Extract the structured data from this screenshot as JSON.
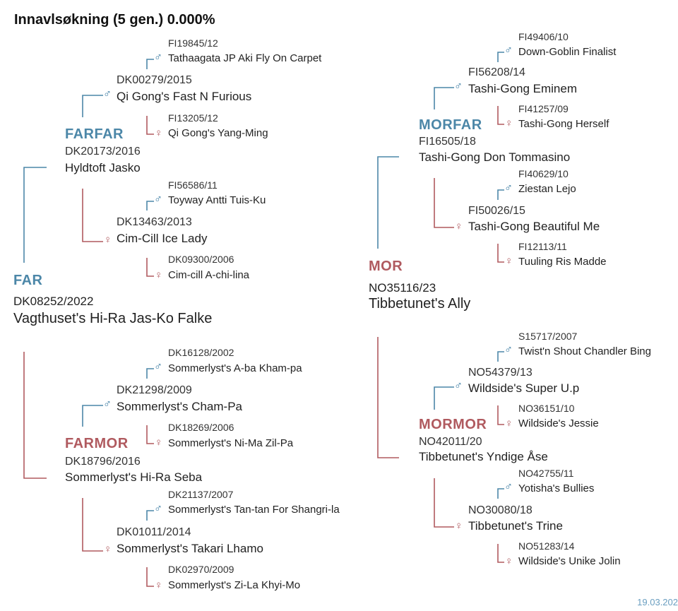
{
  "title": "Innavlsøkning (5 gen.) 0.000%",
  "date": "19.03.202",
  "male_symbol": "♂",
  "female_symbol": "♀",
  "colors": {
    "male": "#4c87a8",
    "female": "#b05a5f",
    "text": "#222222"
  },
  "far": {
    "label": "FAR",
    "reg": "DK08252/2022",
    "name": "Vagthuset's Hi-Ra Jas-Ko Falke"
  },
  "mor": {
    "label": "MOR",
    "reg": "NO35116/23",
    "name": "Tibbetunet's Ally"
  },
  "farfar": {
    "label": "FARFAR",
    "reg": "DK20173/2016",
    "name": "Hyldtoft Jasko"
  },
  "farmor": {
    "label": "FARMOR",
    "reg": "DK18796/2016",
    "name": "Sommerlyst's Hi-Ra Seba"
  },
  "morfar": {
    "label": "MORFAR",
    "reg": "FI16505/18",
    "name": "Tashi-Gong Don Tommasino"
  },
  "mormor": {
    "label": "MORMOR",
    "reg": "NO42011/20",
    "name": "Tibbetunet's Yndige Åse"
  },
  "g3": {
    "ff_s": {
      "reg": "DK00279/2015",
      "name": "Qi Gong's Fast N Furious"
    },
    "ff_d": {
      "reg": "DK13463/2013",
      "name": "Cim-Cill Ice Lady"
    },
    "fm_s": {
      "reg": "DK21298/2009",
      "name": "Sommerlyst's Cham-Pa"
    },
    "fm_d": {
      "reg": "DK01011/2014",
      "name": "Sommerlyst's Takari Lhamo"
    },
    "mf_s": {
      "reg": "FI56208/14",
      "name": "Tashi-Gong Eminem"
    },
    "mf_d": {
      "reg": "FI50026/15",
      "name": "Tashi-Gong Beautiful Me"
    },
    "mm_s": {
      "reg": "NO54379/13",
      "name": "Wildside's Super U.p"
    },
    "mm_d": {
      "reg": "NO30080/18",
      "name": "Tibbetunet's Trine"
    }
  },
  "g4": {
    "ffs_s": {
      "reg": "FI19845/12",
      "name": "Tathaagata JP Aki Fly On Carpet"
    },
    "ffs_d": {
      "reg": "FI13205/12",
      "name": "Qi Gong's Yang-Ming"
    },
    "ffd_s": {
      "reg": "FI56586/11",
      "name": "Toyway Antti Tuis-Ku"
    },
    "ffd_d": {
      "reg": "DK09300/2006",
      "name": "Cim-cill A-chi-lina"
    },
    "fms_s": {
      "reg": "DK16128/2002",
      "name": "Sommerlyst's A-ba Kham-pa"
    },
    "fms_d": {
      "reg": "DK18269/2006",
      "name": "Sommerlyst's Ni-Ma Zil-Pa"
    },
    "fmd_s": {
      "reg": "DK21137/2007",
      "name": "Sommerlyst's Tan-tan For Shangri-la"
    },
    "fmd_d": {
      "reg": "DK02970/2009",
      "name": "Sommerlyst's Zi-La Khyi-Mo"
    },
    "mfs_s": {
      "reg": "FI49406/10",
      "name": "Down-Goblin Finalist"
    },
    "mfs_d": {
      "reg": "FI41257/09",
      "name": "Tashi-Gong Herself"
    },
    "mfd_s": {
      "reg": "FI40629/10",
      "name": "Ziestan Lejo"
    },
    "mfd_d": {
      "reg": "FI12113/11",
      "name": "Tuuling Ris Madde"
    },
    "mms_s": {
      "reg": "S15717/2007",
      "name": "Twist'n Shout Chandler Bing"
    },
    "mms_d": {
      "reg": "NO36151/10",
      "name": "Wildside's Jessie"
    },
    "mmd_s": {
      "reg": "NO42755/11",
      "name": "Yotisha's Bullies"
    },
    "mmd_d": {
      "reg": "NO51283/14",
      "name": "Wildside's Unike Jolin"
    }
  }
}
